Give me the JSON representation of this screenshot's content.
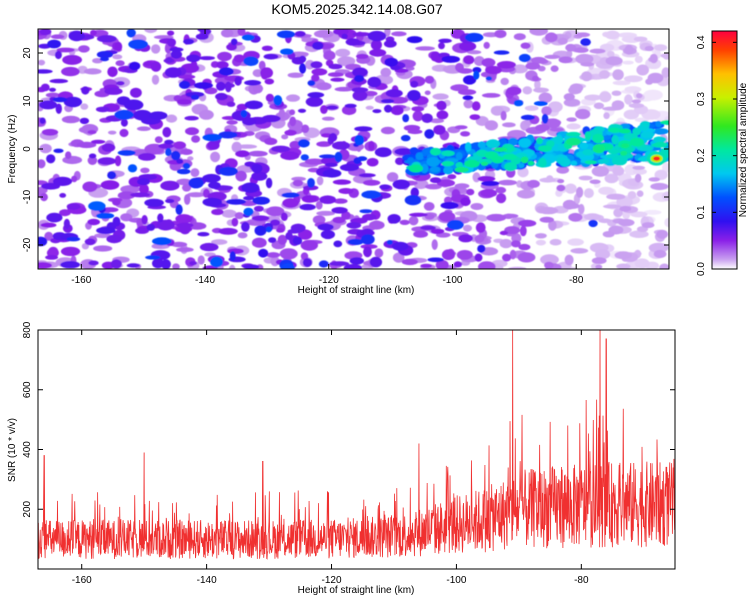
{
  "title": "KOM5.2025.342.14.08.G07",
  "chart_data": [
    {
      "type": "heatmap",
      "name": "spectrogram",
      "xlabel": "Height of straight line (km)",
      "ylabel": "Frequency (Hz)",
      "xlim": [
        -167,
        -65
      ],
      "ylim": [
        -25,
        25
      ],
      "xticks": [
        "-160",
        "-140",
        "-120",
        "-100",
        "-80"
      ],
      "xtick_values": [
        -160,
        -140,
        -120,
        -100,
        -80
      ],
      "yticks": [
        "-20",
        "-10",
        "0",
        "10",
        "20"
      ],
      "ytick_values": [
        -20,
        -10,
        0,
        10,
        20
      ],
      "colorbar": {
        "label": "Normalized spectral amplitude",
        "range": [
          0.0,
          0.42
        ],
        "ticks": [
          "0.0",
          "0.1",
          "0.2",
          "0.3",
          "0.4"
        ],
        "tick_values": [
          0.0,
          0.1,
          0.2,
          0.3,
          0.4
        ]
      },
      "features": [
        {
          "description": "broadband noise",
          "x_range": [
            -167,
            -105
          ],
          "y_range": [
            -25,
            25
          ],
          "amplitude": 0.04
        },
        {
          "description": "signal band",
          "x_range": [
            -107,
            -65
          ],
          "y_center_start": -3,
          "y_center_end": 2,
          "amplitude": 0.15
        },
        {
          "description": "peak",
          "x": -67,
          "y": -2,
          "amplitude": 0.4
        }
      ]
    },
    {
      "type": "line",
      "name": "snr",
      "xlabel": "Height of straight line (km)",
      "ylabel": "SNR (10 * v/v)",
      "xlim": [
        -167,
        -65
      ],
      "ylim": [
        0,
        800
      ],
      "xticks": [
        "-160",
        "-140",
        "-120",
        "-100",
        "-80"
      ],
      "xtick_values": [
        -160,
        -140,
        -120,
        -100,
        -80
      ],
      "yticks": [
        "200",
        "400",
        "600",
        "800"
      ],
      "ytick_values": [
        200,
        400,
        600,
        800
      ],
      "color": "#f03030",
      "series": [
        {
          "name": "SNR",
          "x": [
            -167,
            -160,
            -150,
            -140,
            -130,
            -120,
            -110,
            -105,
            -100,
            -95,
            -90,
            -85,
            -80,
            -75,
            -70,
            -65
          ],
          "baseline": [
            110,
            110,
            110,
            110,
            110,
            112,
            120,
            140,
            165,
            185,
            220,
            230,
            235,
            240,
            240,
            240
          ],
          "peak_x": [
            -166,
            -150,
            -131,
            -106,
            -91,
            -77,
            -76
          ],
          "peak_y": [
            380,
            390,
            360,
            420,
            800,
            800,
            770
          ]
        }
      ]
    }
  ]
}
